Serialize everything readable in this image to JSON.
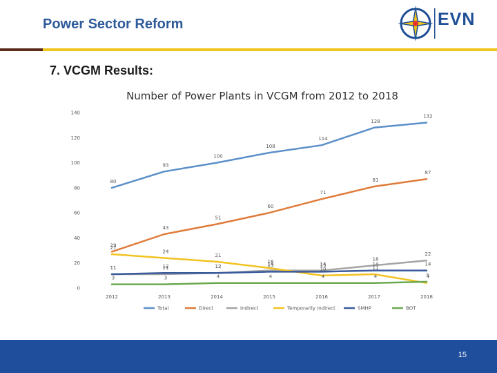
{
  "header": {
    "title": "Power Sector Reform",
    "logo_text": "EVN"
  },
  "section": {
    "title": "7. VCGM Results:"
  },
  "footer": {
    "page_number": "15"
  },
  "colors": {
    "header_title": "#2f5b9a",
    "footer_band": "#1f4f9c",
    "gold_rule": "#f0c419",
    "dark_rule": "#5a2a1a"
  },
  "chart_data": {
    "type": "line",
    "title": "Number of Power Plants in VCGM from 2012 to 2018",
    "categories": [
      "2012",
      "2013",
      "2014",
      "2015",
      "2016",
      "2017",
      "2018"
    ],
    "ylim": [
      0,
      140
    ],
    "yticks": [
      0,
      20,
      40,
      60,
      80,
      100,
      120,
      140
    ],
    "legend_position": "bottom",
    "series": [
      {
        "name": "Total",
        "color": "#5b8fc9",
        "values": [
          80,
          93,
          100,
          108,
          114,
          128,
          132
        ]
      },
      {
        "name": "Direct",
        "color": "#e07b39",
        "values": [
          29,
          43,
          51,
          60,
          71,
          81,
          87
        ]
      },
      {
        "name": "Indirect",
        "color": "#a5a5a5",
        "values": [
          11,
          11,
          12,
          14,
          14,
          18,
          22
        ]
      },
      {
        "name": "Temporarily Indirect",
        "color": "#f2c21f",
        "values": [
          27,
          24,
          21,
          16,
          10,
          11,
          4
        ]
      },
      {
        "name": "SMHP",
        "color": "#3a5a9c",
        "values": [
          11,
          12,
          12,
          13,
          13,
          14,
          14
        ]
      },
      {
        "name": "BOT",
        "color": "#6aa84f",
        "values": [
          3,
          3,
          4,
          4,
          4,
          4,
          5
        ]
      }
    ]
  }
}
